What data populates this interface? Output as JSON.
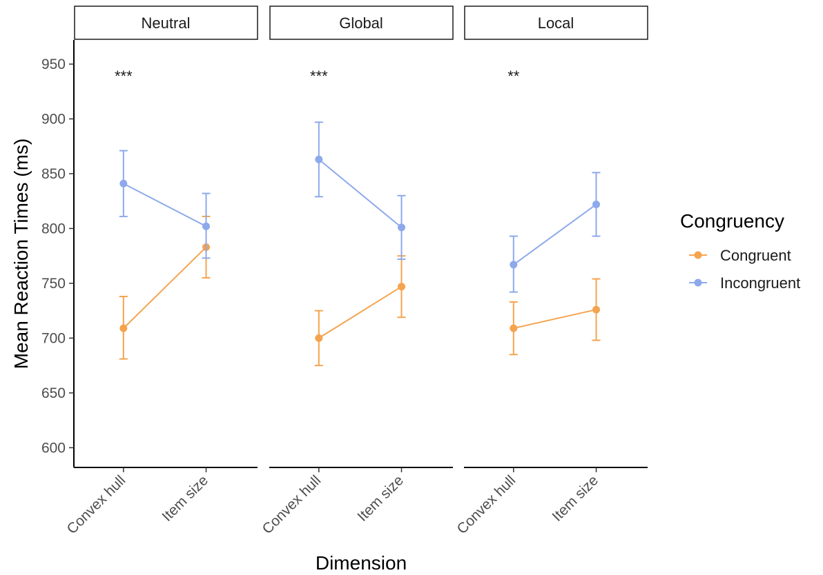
{
  "chart_data": {
    "type": "line",
    "xlabel": "Dimension",
    "ylabel": "Mean Reaction Times (ms)",
    "ylim": [
      582,
      972
    ],
    "yticks": [
      "600",
      "650",
      "700",
      "750",
      "800",
      "850",
      "900",
      "950"
    ],
    "categories": [
      "Convex hull",
      "Item size"
    ],
    "legend": {
      "title": "Congruency",
      "position": "right",
      "entries": [
        "Congruent",
        "Incongruent"
      ]
    },
    "colors": {
      "Congruent": "#F5A34F",
      "Incongruent": "#8DA9EC"
    },
    "panels": [
      {
        "label": "Neutral",
        "annotation": "***",
        "series": [
          {
            "name": "Congruent",
            "values": [
              709,
              783
            ],
            "lower": [
              681,
              755
            ],
            "upper": [
              738,
              811
            ]
          },
          {
            "name": "Incongruent",
            "values": [
              841,
              802
            ],
            "lower": [
              811,
              773
            ],
            "upper": [
              871,
              832
            ]
          }
        ]
      },
      {
        "label": "Global",
        "annotation": "***",
        "series": [
          {
            "name": "Congruent",
            "values": [
              700,
              747
            ],
            "lower": [
              675,
              719
            ],
            "upper": [
              725,
              775
            ]
          },
          {
            "name": "Incongruent",
            "values": [
              863,
              801
            ],
            "lower": [
              829,
              772
            ],
            "upper": [
              897,
              830
            ]
          }
        ]
      },
      {
        "label": "Local",
        "annotation": "**",
        "series": [
          {
            "name": "Congruent",
            "values": [
              709,
              726
            ],
            "lower": [
              685,
              698
            ],
            "upper": [
              733,
              754
            ]
          },
          {
            "name": "Incongruent",
            "values": [
              767,
              822
            ],
            "lower": [
              742,
              793
            ],
            "upper": [
              793,
              851
            ]
          }
        ]
      }
    ]
  }
}
